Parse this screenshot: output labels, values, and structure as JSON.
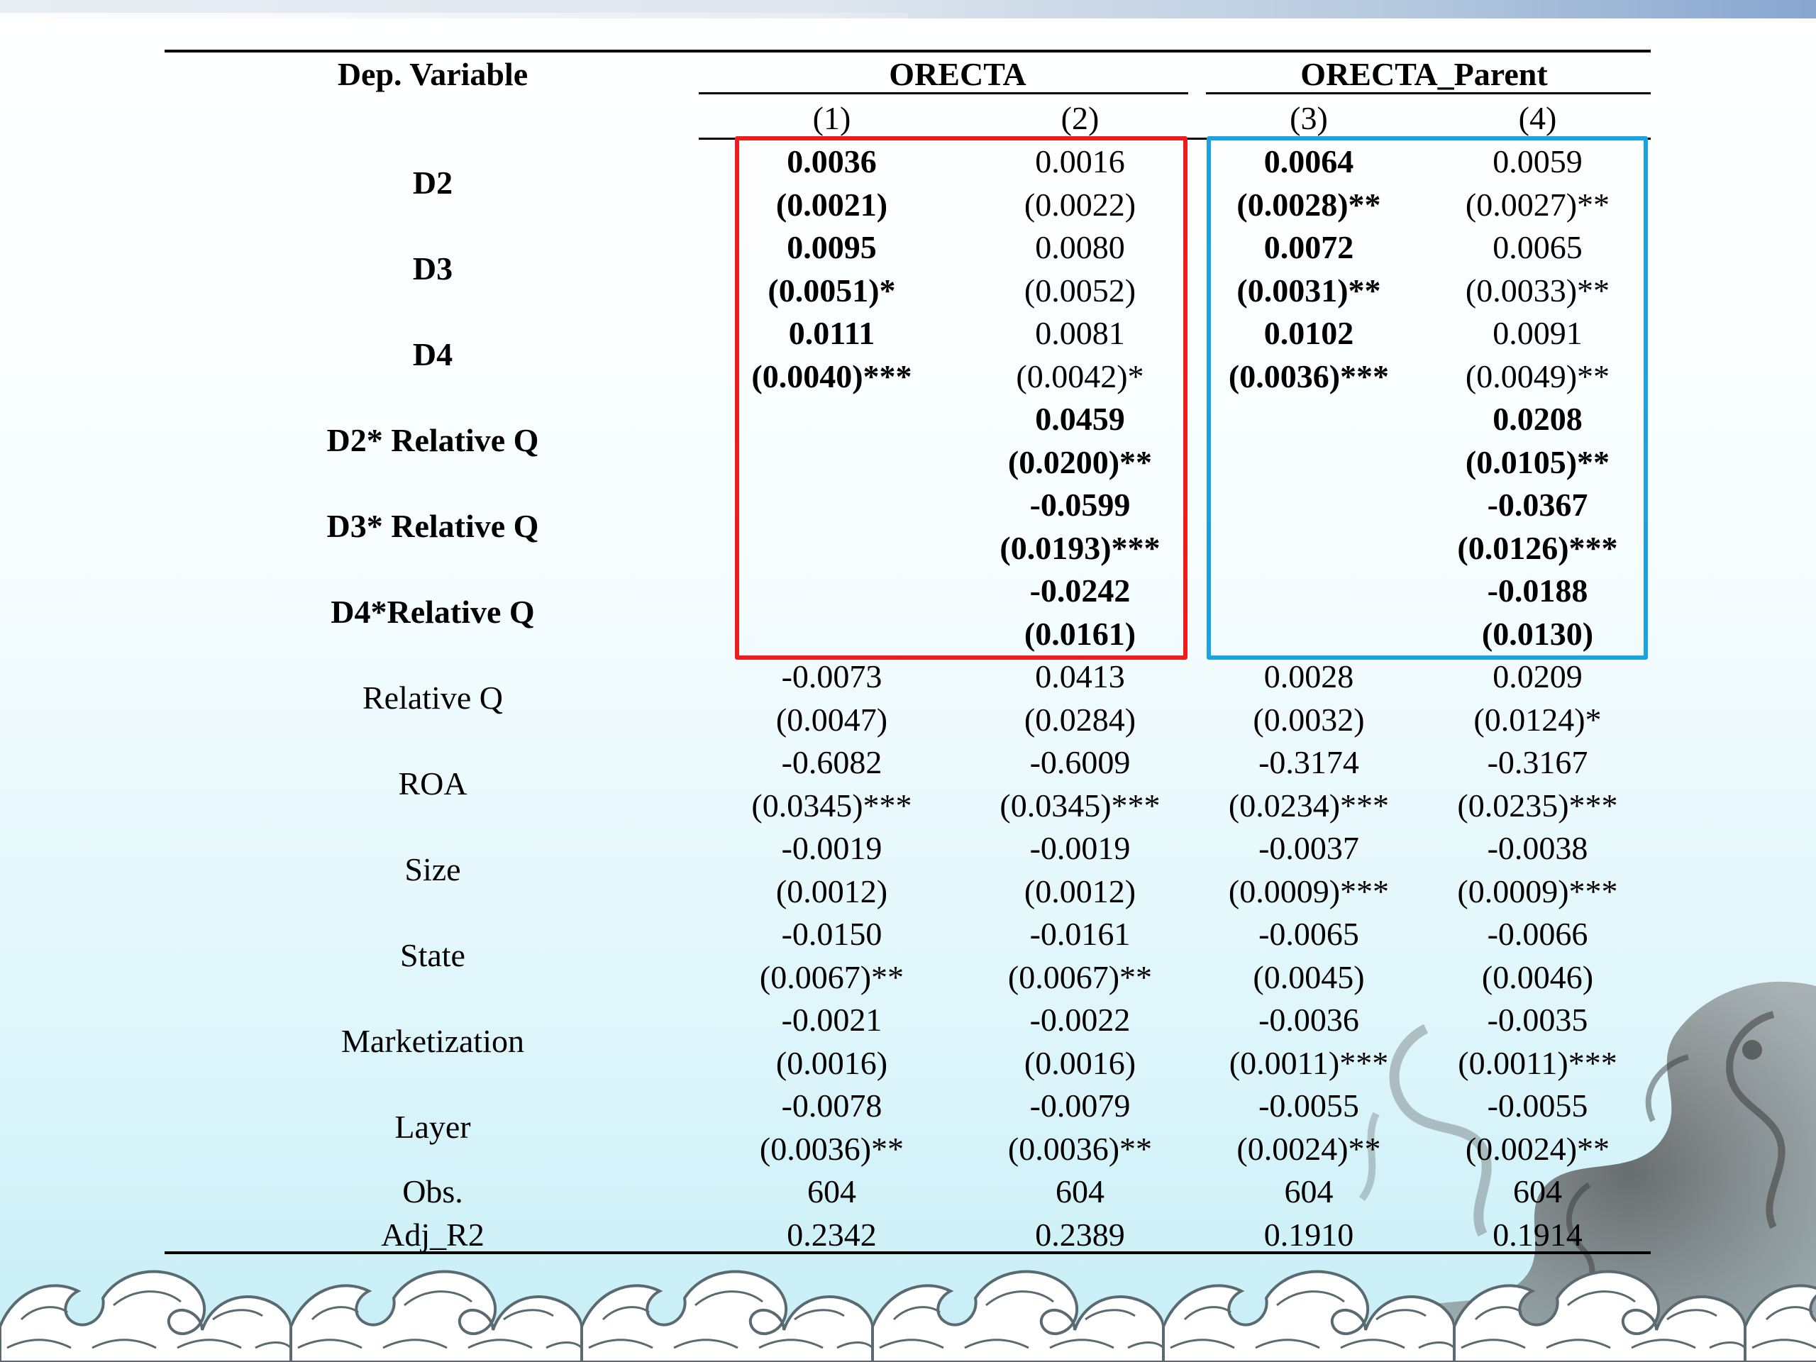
{
  "header": {
    "dep_variable": "Dep. Variable",
    "group1": "ORECTA",
    "group2": "ORECTA_Parent",
    "cols": [
      "(1)",
      "(2)",
      "(3)",
      "(4)"
    ]
  },
  "rows": [
    {
      "label": "D2",
      "bold_label": true,
      "coef": [
        "0.0036",
        "0.0016",
        "0.0064",
        "0.0059"
      ],
      "se": [
        "(0.0021)",
        "(0.0022)",
        "(0.0028)**",
        "(0.0027)**"
      ],
      "bold": [
        true,
        false,
        true,
        false
      ]
    },
    {
      "label": "D3",
      "bold_label": true,
      "coef": [
        "0.0095",
        "0.0080",
        "0.0072",
        "0.0065"
      ],
      "se": [
        "(0.0051)*",
        "(0.0052)",
        "(0.0031)**",
        "(0.0033)**"
      ],
      "bold": [
        true,
        false,
        true,
        false
      ]
    },
    {
      "label": "D4",
      "bold_label": true,
      "coef": [
        "0.0111",
        "0.0081",
        "0.0102",
        "0.0091"
      ],
      "se": [
        "(0.0040)***",
        "(0.0042)*",
        "(0.0036)***",
        "(0.0049)**"
      ],
      "bold": [
        true,
        false,
        true,
        false
      ]
    },
    {
      "label": "D2* Relative Q",
      "bold_label": true,
      "coef": [
        "",
        "0.0459",
        "",
        "0.0208"
      ],
      "se": [
        "",
        "(0.0200)**",
        "",
        "(0.0105)**"
      ],
      "bold": [
        false,
        true,
        false,
        true
      ]
    },
    {
      "label": "D3* Relative Q",
      "bold_label": true,
      "coef": [
        "",
        "-0.0599",
        "",
        "-0.0367"
      ],
      "se": [
        "",
        "(0.0193)***",
        "",
        "(0.0126)***"
      ],
      "bold": [
        false,
        true,
        false,
        true
      ]
    },
    {
      "label": "D4*Relative Q",
      "bold_label": true,
      "coef": [
        "",
        "-0.0242",
        "",
        "-0.0188"
      ],
      "se": [
        "",
        "(0.0161)",
        "",
        "(0.0130)"
      ],
      "bold": [
        false,
        true,
        false,
        true
      ]
    },
    {
      "label": "Relative Q",
      "bold_label": false,
      "coef": [
        "-0.0073",
        "0.0413",
        "0.0028",
        "0.0209"
      ],
      "se": [
        "(0.0047)",
        "(0.0284)",
        "(0.0032)",
        "(0.0124)*"
      ],
      "bold": [
        false,
        false,
        false,
        false
      ]
    },
    {
      "label": "ROA",
      "bold_label": false,
      "coef": [
        "-0.6082",
        "-0.6009",
        "-0.3174",
        "-0.3167"
      ],
      "se": [
        "(0.0345)***",
        "(0.0345)***",
        "(0.0234)***",
        "(0.0235)***"
      ],
      "bold": [
        false,
        false,
        false,
        false
      ]
    },
    {
      "label": "Size",
      "bold_label": false,
      "coef": [
        "-0.0019",
        "-0.0019",
        "-0.0037",
        "-0.0038"
      ],
      "se": [
        "(0.0012)",
        "(0.0012)",
        "(0.0009)***",
        "(0.0009)***"
      ],
      "bold": [
        false,
        false,
        false,
        false
      ]
    },
    {
      "label": "State",
      "bold_label": false,
      "coef": [
        "-0.0150",
        "-0.0161",
        "-0.0065",
        "-0.0066"
      ],
      "se": [
        "(0.0067)**",
        "(0.0067)**",
        "(0.0045)",
        "(0.0046)"
      ],
      "bold": [
        false,
        false,
        false,
        false
      ]
    },
    {
      "label": "Marketization",
      "bold_label": false,
      "coef": [
        "-0.0021",
        "-0.0022",
        "-0.0036",
        "-0.0035"
      ],
      "se": [
        "(0.0016)",
        "(0.0016)",
        "(0.0011)***",
        "(0.0011)***"
      ],
      "bold": [
        false,
        false,
        false,
        false
      ]
    },
    {
      "label": "Layer",
      "bold_label": false,
      "coef": [
        "-0.0078",
        "-0.0079",
        "-0.0055",
        "-0.0055"
      ],
      "se": [
        "(0.0036)**",
        "(0.0036)**",
        "(0.0024)**",
        "(0.0024)**"
      ],
      "bold": [
        false,
        false,
        false,
        false
      ]
    }
  ],
  "stats": [
    {
      "label": "Obs.",
      "values": [
        "604",
        "604",
        "604",
        "604"
      ]
    },
    {
      "label": "Adj_R2",
      "values": [
        "0.2342",
        "0.2389",
        "0.1910",
        "0.1914"
      ]
    }
  ],
  "highlight_colors": {
    "red_box": "#ee1c1c",
    "blue_box": "#1aa3e0"
  },
  "decor": {
    "top_band": "banner-stripe",
    "bottom": "wave-pattern",
    "corner": "dragon-watermark-icon"
  }
}
